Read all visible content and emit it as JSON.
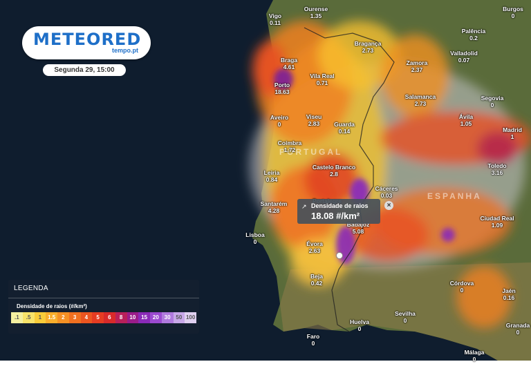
{
  "header": {
    "logo": "METEORED",
    "logo_sub": "tempo.pt",
    "date": "Segunda 29, 15:00"
  },
  "legend": {
    "title": "LEGENDA",
    "subtitle": "Densidade de raios (#/km²)",
    "steps": [
      {
        "label": ".1",
        "color": "#f4f0a0"
      },
      {
        "label": ".5",
        "color": "#f7e36a"
      },
      {
        "label": "1",
        "color": "#f8cc3a"
      },
      {
        "label": "1.5",
        "color": "#f8ae2c"
      },
      {
        "label": "2",
        "color": "#f49024"
      },
      {
        "label": "3",
        "color": "#f07020"
      },
      {
        "label": "4",
        "color": "#ec5520"
      },
      {
        "label": "5",
        "color": "#e63c22"
      },
      {
        "label": "6",
        "color": "#d82a2a"
      },
      {
        "label": "8",
        "color": "#b8205a"
      },
      {
        "label": "10",
        "color": "#9a1c8a"
      },
      {
        "label": "15",
        "color": "#8a2ab8"
      },
      {
        "label": "20",
        "color": "#9b4ad0"
      },
      {
        "label": "30",
        "color": "#b07ade"
      },
      {
        "label": "50",
        "color": "#c8a8e8"
      },
      {
        "label": "100",
        "color": "#e0d0f0"
      }
    ]
  },
  "tooltip": {
    "label": "Densidade de raios",
    "value": "18.08 #/km²"
  },
  "countries": [
    "PORTUGAL",
    "ESPANHA"
  ],
  "cities": [
    {
      "name": "Vigo",
      "value": "0.11"
    },
    {
      "name": "Ourense",
      "value": "1.35"
    },
    {
      "name": "Burgos",
      "value": "0"
    },
    {
      "name": "Palência",
      "value": "0.2"
    },
    {
      "name": "Bragança",
      "value": "2.73"
    },
    {
      "name": "Valladolid",
      "value": "0.07"
    },
    {
      "name": "Braga",
      "value": "4.61"
    },
    {
      "name": "Zamora",
      "value": "2.37"
    },
    {
      "name": "Vila Real",
      "value": "0.71"
    },
    {
      "name": "Porto",
      "value": "18.63"
    },
    {
      "name": "Segovia",
      "value": "0"
    },
    {
      "name": "Salamanca",
      "value": "2.73"
    },
    {
      "name": "Aveiro",
      "value": "0"
    },
    {
      "name": "Viseu",
      "value": "2.83"
    },
    {
      "name": "Guarda",
      "value": "0.14"
    },
    {
      "name": "Ávila",
      "value": "1.05"
    },
    {
      "name": "Madrid",
      "value": "1"
    },
    {
      "name": "Coimbra",
      "value": "1.72"
    },
    {
      "name": "Castelo Branco",
      "value": "2.8"
    },
    {
      "name": "Toledo",
      "value": "3.16"
    },
    {
      "name": "Leiria",
      "value": "0.84"
    },
    {
      "name": "Cáceres",
      "value": "0.03"
    },
    {
      "name": "Portalegre",
      "value": ""
    },
    {
      "name": "Santarém",
      "value": "4.28"
    },
    {
      "name": "Ciudad Real",
      "value": "1.09"
    },
    {
      "name": "Badajoz",
      "value": "5.08"
    },
    {
      "name": "Lisboa",
      "value": "0"
    },
    {
      "name": "Évora",
      "value": "2.63"
    },
    {
      "name": "Beja",
      "value": "0.42"
    },
    {
      "name": "Córdova",
      "value": "0"
    },
    {
      "name": "Jaén",
      "value": "0.16"
    },
    {
      "name": "Sevilha",
      "value": "0"
    },
    {
      "name": "Huelva",
      "value": "0"
    },
    {
      "name": "Granada",
      "value": "0"
    },
    {
      "name": "Faro",
      "value": "0"
    },
    {
      "name": "Málaga",
      "value": "0"
    }
  ]
}
